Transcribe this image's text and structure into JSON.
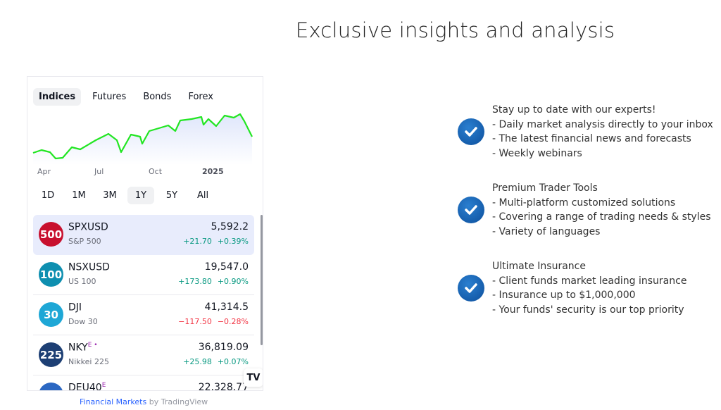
{
  "headline": "Exclusive insights and analysis",
  "widget": {
    "tabs": [
      "Indices",
      "Futures",
      "Bonds",
      "Forex"
    ],
    "active_tab": "Indices",
    "x_labels": [
      "Apr",
      "Jul",
      "Oct",
      "2025"
    ],
    "ranges": [
      "1D",
      "1M",
      "3M",
      "1Y",
      "5Y",
      "All"
    ],
    "active_range": "1Y",
    "line_color": "#22e622",
    "rows": [
      {
        "badge": "500",
        "badge_color": "#c8102e",
        "symbol": "SPXUSD",
        "sup": "",
        "name": "S&P 500",
        "price": "5,592.2",
        "change": "+21.70",
        "pct": "+0.39%",
        "dir": "up"
      },
      {
        "badge": "100",
        "badge_color": "#0e8fb0",
        "symbol": "NSXUSD",
        "sup": "",
        "name": "US 100",
        "price": "19,547.0",
        "change": "+173.80",
        "pct": "+0.90%",
        "dir": "up"
      },
      {
        "badge": "30",
        "badge_color": "#1ea7d6",
        "symbol": "DJI",
        "sup": "",
        "name": "Dow 30",
        "price": "41,314.5",
        "change": "−117.50",
        "pct": "−0.28%",
        "dir": "down"
      },
      {
        "badge": "225",
        "badge_color": "#1d3f74",
        "symbol": "NKY",
        "sup": "E •",
        "name": "Nikkei 225",
        "price": "36,819.09",
        "change": "+25.98",
        "pct": "+0.07%",
        "dir": "up"
      },
      {
        "badge": "",
        "badge_color": "#2b67c2",
        "symbol": "DEU40",
        "sup": "E",
        "name": "",
        "price": "22,328.77",
        "change": "",
        "pct": "",
        "dir": "up"
      }
    ],
    "tv_logo": "TV",
    "credit_link": "Financial Markets",
    "credit_suffix": " by TradingView"
  },
  "features": [
    {
      "lines": [
        "Stay up to date with our experts!",
        "- Daily market analysis directly to your inbox",
        "- The latest financial news and forecasts",
        "- Weekly webinars"
      ]
    },
    {
      "lines": [
        "Premium Trader Tools",
        "- Multi-platform customized solutions",
        "- Covering a range of trading needs & styles",
        "- Variety of languages"
      ]
    },
    {
      "lines": [
        "Ultimate Insurance",
        "- Client funds market leading insurance",
        "- Insurance up to $1,000,000",
        "- Your funds' security is our top priority"
      ]
    }
  ]
}
